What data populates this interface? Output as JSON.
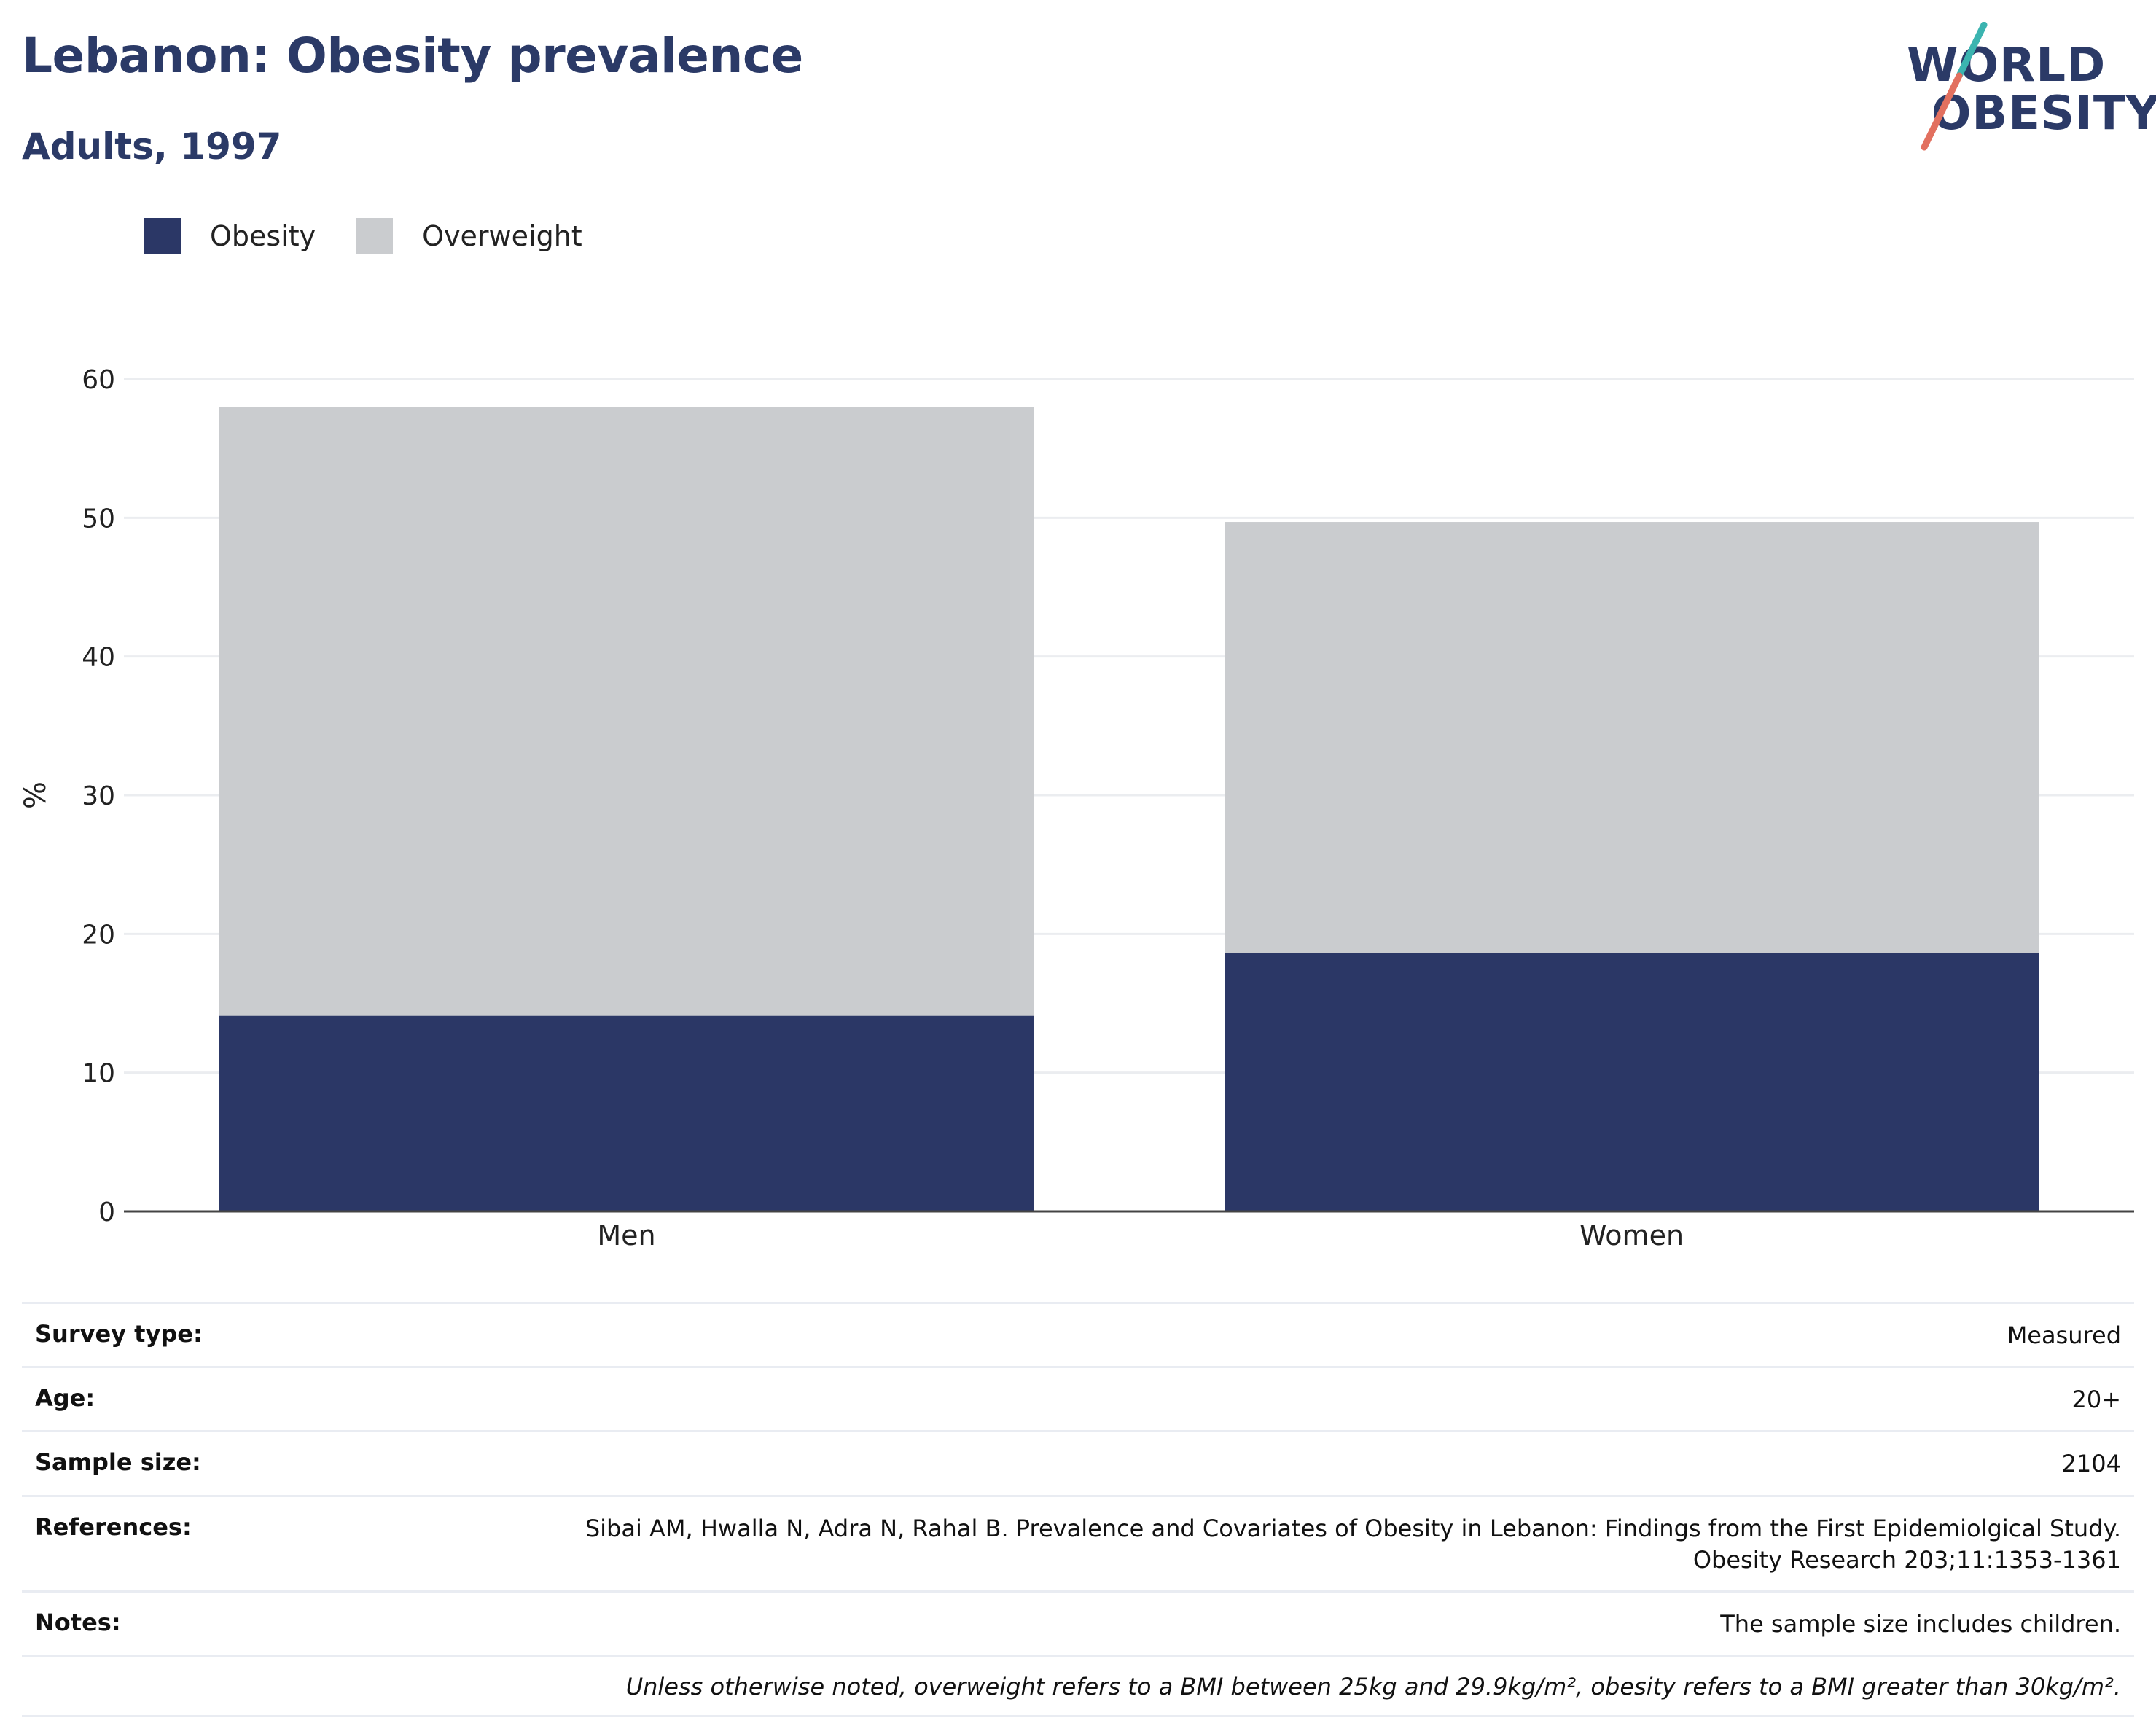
{
  "header": {
    "title": "Lebanon: Obesity prevalence",
    "subtitle": "Adults, 1997"
  },
  "logo": {
    "line1": "WORLD",
    "line2": "OBESITY",
    "colors": {
      "text": "#2b3a67",
      "slash_top": "#3bb4b0",
      "slash_bottom": "#e2705f"
    }
  },
  "legend": {
    "items": [
      {
        "label": "Obesity",
        "color": "#2b3766"
      },
      {
        "label": "Overweight",
        "color": "#cacccf"
      }
    ]
  },
  "chart_data": {
    "type": "bar",
    "stacked": true,
    "categories": [
      "Men",
      "Women"
    ],
    "series": [
      {
        "name": "Obesity",
        "values": [
          14.1,
          18.6
        ],
        "color": "#2b3766"
      },
      {
        "name": "Overweight",
        "values": [
          43.9,
          31.1
        ],
        "color": "#cacccf"
      }
    ],
    "totals": [
      58.0,
      49.7
    ],
    "ylabel": "%",
    "xlabel": "",
    "ylim": [
      0,
      60
    ],
    "yticks": [
      0,
      10,
      20,
      30,
      40,
      50,
      60
    ],
    "grid": true,
    "legend_position": "top-left"
  },
  "meta": {
    "survey_type": {
      "label": "Survey type:",
      "value": "Measured"
    },
    "age": {
      "label": "Age:",
      "value": "20+"
    },
    "sample_size": {
      "label": "Sample size:",
      "value": "2104"
    },
    "references": {
      "label": "References:",
      "line1": "Sibai AM, Hwalla N, Adra N, Rahal B. Prevalence and Covariates of Obesity in Lebanon: Findings from the First Epidemiolgical Study.",
      "line2": "Obesity Research 203;11:1353-1361"
    },
    "notes": {
      "label": "Notes:",
      "value": "The sample size includes children."
    },
    "footnote": "Unless otherwise noted, overweight refers to a BMI between 25kg and 29.9kg/m², obesity refers to a BMI greater than 30kg/m²."
  }
}
